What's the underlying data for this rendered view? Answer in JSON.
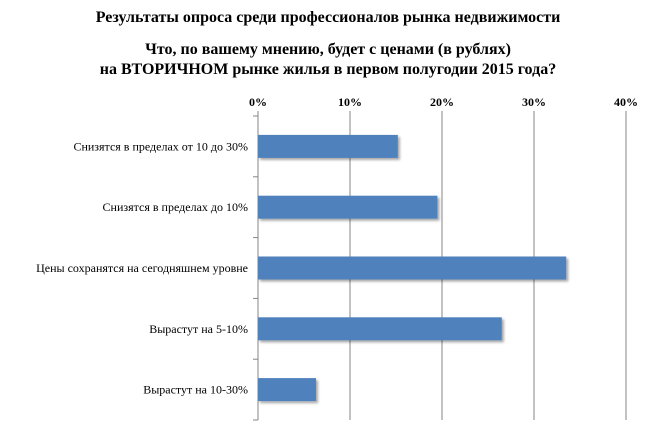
{
  "titles": [
    "Результаты опроса среди профессионалов рынка недвижимости",
    "Что, по вашему мнению, будет с ценами (в рублях)",
    "на ВТОРИЧНОМ рынке жилья в первом полугодии 2015 года?"
  ],
  "chart_data": {
    "type": "bar",
    "orientation": "horizontal",
    "title": "Результаты опроса среди профессионалов рынка недвижимости",
    "subtitle": "Что, по вашему мнению, будет с ценами (в рублях) на ВТОРИЧНОМ рынке жилья в первом полугодии 2015 года?",
    "categories": [
      "Снизятся в пределах от 10 до 30%",
      "Снизятся в пределах до 10%",
      "Цены сохранятся на сегодняшнем уровне",
      "Вырастут на 5-10%",
      "Вырастут на 10-30%"
    ],
    "values": [
      15.2,
      19.5,
      33.5,
      26.5,
      6.3
    ],
    "xlim": [
      0,
      40
    ],
    "x_ticks": [
      "0%",
      "10%",
      "20%",
      "30%",
      "40%"
    ],
    "x_axis_position": "top",
    "grid": "vertical",
    "legend": "none",
    "bar_color": "#4f81bd"
  }
}
